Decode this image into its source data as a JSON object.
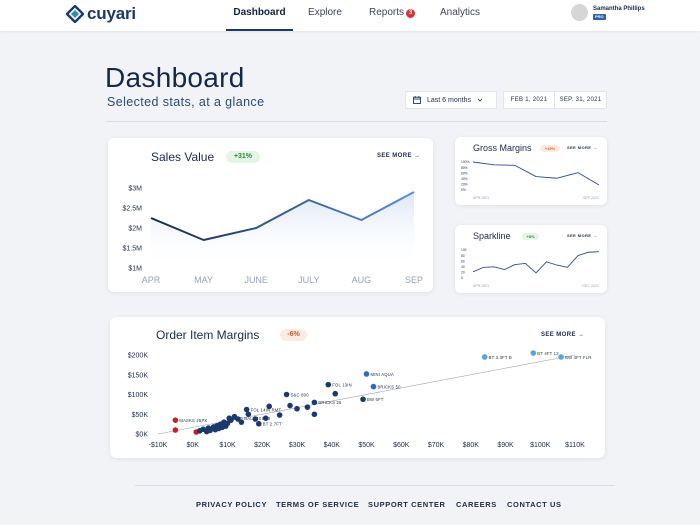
{
  "brand": {
    "name": "cuyari"
  },
  "nav": {
    "items": [
      {
        "label": "Dashboard"
      },
      {
        "label": "Explore"
      },
      {
        "label": "Reports",
        "badge": "3"
      },
      {
        "label": "Analytics"
      }
    ]
  },
  "user": {
    "name": "Samantha Phillips",
    "badge": "PRO"
  },
  "header": {
    "title": "Dashboard",
    "subtitle": "Selected stats, at a glance",
    "range_label": "Last 6 months",
    "start_date": "FEB 1, 2021",
    "end_date": "SEP. 31, 2021"
  },
  "sales": {
    "title": "Sales Value",
    "change": "+31%",
    "see_more": "SEE MORE"
  },
  "gross": {
    "title": "Gross Margins",
    "change": "+19%",
    "see_more": "SEE MORE"
  },
  "spark": {
    "title": "Sparkline",
    "change": "+8%",
    "see_more": "SEE MORE"
  },
  "order": {
    "title": "Order Item Margins",
    "change": "-6%",
    "see_more": "SEE MORE"
  },
  "footer": {
    "links": [
      "PRIVACY POLICY",
      "TERMS OF SERVICE",
      "SUPPORT CENTER",
      "CAREERS",
      "CONTACT US"
    ]
  },
  "colors": {
    "navy": "#1b3a6b",
    "line_blue": "#5a8fd6",
    "green": "#2d8a3f",
    "orange": "#d35a2a",
    "red_point": "#c8202a"
  },
  "chart_data": [
    {
      "type": "line",
      "title": "Sales Value",
      "categories": [
        "APR",
        "MAY",
        "JUNE",
        "JULY",
        "AUG",
        "SEP"
      ],
      "values": [
        2.25,
        1.7,
        2.0,
        2.7,
        2.2,
        2.9
      ],
      "yticks": [
        "$3M",
        "$2.5M",
        "$2M",
        "$1.5M",
        "$1M"
      ],
      "ylim": [
        1,
        3
      ],
      "grid": false
    },
    {
      "type": "line",
      "title": "Gross Margins",
      "x_start_label": "APR 2021",
      "x_end_label": "SEP 2021",
      "values": [
        100,
        90,
        88,
        48,
        42,
        62,
        18
      ],
      "yticks": [
        "100%",
        "80%",
        "60%",
        "40%",
        "20%",
        "0%"
      ],
      "ylim": [
        0,
        100
      ]
    },
    {
      "type": "line",
      "title": "Sparkline",
      "x_start_label": "APR 2021",
      "x_end_label": "DEC 2021",
      "values": [
        22,
        38,
        40,
        30,
        48,
        52,
        18,
        58,
        46,
        38,
        80,
        92,
        94
      ],
      "yticks": [
        "100",
        "80",
        "60",
        "40",
        "20",
        "0"
      ],
      "ylim": [
        0,
        100
      ]
    },
    {
      "type": "scatter",
      "title": "Order Item Margins",
      "xticks": [
        "-$10K",
        "$0K",
        "$10K",
        "$20K",
        "$30K",
        "$40K",
        "$50K",
        "$60K",
        "$70K",
        "$80K",
        "$90K",
        "$100K",
        "$110K"
      ],
      "yticks": [
        "$200K",
        "$150K",
        "$100K",
        "$50K",
        "$0K"
      ],
      "xlim": [
        -10000,
        110000
      ],
      "ylim": [
        0,
        200000
      ],
      "trendline": [
        [
          -10000,
          0
        ],
        [
          110000,
          200000
        ]
      ],
      "points": [
        {
          "x": -5000,
          "y": 35000,
          "color": "#c8202a",
          "label": "MASKS 25PK"
        },
        {
          "x": -5000,
          "y": 10000,
          "color": "#c8202a",
          "label": ""
        },
        {
          "x": 1000,
          "y": 5000,
          "color": "#c8202a",
          "label": ""
        },
        {
          "x": 2000,
          "y": 8000,
          "color": "#1b3a6b",
          "label": ""
        },
        {
          "x": 3000,
          "y": 12000,
          "color": "#1b3a6b",
          "label": ""
        },
        {
          "x": 4000,
          "y": 6000,
          "color": "#1b3a6b",
          "label": ""
        },
        {
          "x": 4500,
          "y": 15000,
          "color": "#1b3a6b",
          "label": ""
        },
        {
          "x": 5000,
          "y": 9000,
          "color": "#1b3a6b",
          "label": ""
        },
        {
          "x": 6000,
          "y": 18000,
          "color": "#1b3a6b",
          "label": ""
        },
        {
          "x": 6500,
          "y": 11000,
          "color": "#1b3a6b",
          "label": ""
        },
        {
          "x": 7000,
          "y": 21000,
          "color": "#1b3a6b",
          "label": ""
        },
        {
          "x": 7500,
          "y": 14000,
          "color": "#1b3a6b",
          "label": ""
        },
        {
          "x": 8000,
          "y": 25000,
          "color": "#1b3a6b",
          "label": ""
        },
        {
          "x": 8500,
          "y": 17000,
          "color": "#1b3a6b",
          "label": ""
        },
        {
          "x": 9000,
          "y": 30000,
          "color": "#1b3a6b",
          "label": ""
        },
        {
          "x": 9500,
          "y": 20000,
          "color": "#1b3a6b",
          "label": ""
        },
        {
          "x": 10000,
          "y": 27000,
          "color": "#1b3a6b",
          "label": ""
        },
        {
          "x": 10500,
          "y": 40000,
          "color": "#1b3a6b",
          "label": "CUD BALL 10IN B"
        },
        {
          "x": 11000,
          "y": 35000,
          "color": "#1b3a6b",
          "label": ""
        },
        {
          "x": 12000,
          "y": 44000,
          "color": "#1b3a6b",
          "label": ""
        },
        {
          "x": 13000,
          "y": 38000,
          "color": "#1b3a6b",
          "label": ""
        },
        {
          "x": 14000,
          "y": 30000,
          "color": "#1b3a6b",
          "label": ""
        },
        {
          "x": 15500,
          "y": 62000,
          "color": "#1b3a6b",
          "label": "FOL 14IN RMT"
        },
        {
          "x": 16000,
          "y": 50000,
          "color": "#1b3a6b",
          "label": ""
        },
        {
          "x": 18000,
          "y": 38000,
          "color": "#1b3a6b",
          "label": ""
        },
        {
          "x": 19000,
          "y": 26000,
          "color": "#1b3a6b",
          "label": "BT 2.7FT"
        },
        {
          "x": 21000,
          "y": 40000,
          "color": "#1b3a6b",
          "label": ""
        },
        {
          "x": 22000,
          "y": 70000,
          "color": "#1b3a6b",
          "label": ""
        },
        {
          "x": 25000,
          "y": 48000,
          "color": "#1b3a6b",
          "label": ""
        },
        {
          "x": 27000,
          "y": 100000,
          "color": "#1b3a6b",
          "label": "S&C 800"
        },
        {
          "x": 28000,
          "y": 72000,
          "color": "#1b3a6b",
          "label": ""
        },
        {
          "x": 30000,
          "y": 64000,
          "color": "#1b3a6b",
          "label": ""
        },
        {
          "x": 33000,
          "y": 68000,
          "color": "#1b3a6b",
          "label": ""
        },
        {
          "x": 35000,
          "y": 80000,
          "color": "#1b3a6b",
          "label": "BRICKS 25"
        },
        {
          "x": 35000,
          "y": 50000,
          "color": "#1b3a6b",
          "label": ""
        },
        {
          "x": 39000,
          "y": 125000,
          "color": "#1b3a6b",
          "label": "FOL 13IN"
        },
        {
          "x": 41000,
          "y": 102000,
          "color": "#1b3a6b",
          "label": ""
        },
        {
          "x": 49000,
          "y": 88000,
          "color": "#1b3a6b",
          "label": "BW 6FT"
        },
        {
          "x": 50000,
          "y": 152000,
          "color": "#2e6bc0",
          "label": "MINI AQUA"
        },
        {
          "x": 52000,
          "y": 120000,
          "color": "#2e6bc0",
          "label": "BRICKS 50"
        },
        {
          "x": 84000,
          "y": 195000,
          "color": "#5aa2e8",
          "label": "BT 3.3FT B"
        },
        {
          "x": 98000,
          "y": 205000,
          "color": "#5aa2e8",
          "label": "BT 4FT 12"
        },
        {
          "x": 106000,
          "y": 195000,
          "color": "#5aa2e8",
          "label": "BW 4FT FLR"
        }
      ]
    }
  ]
}
